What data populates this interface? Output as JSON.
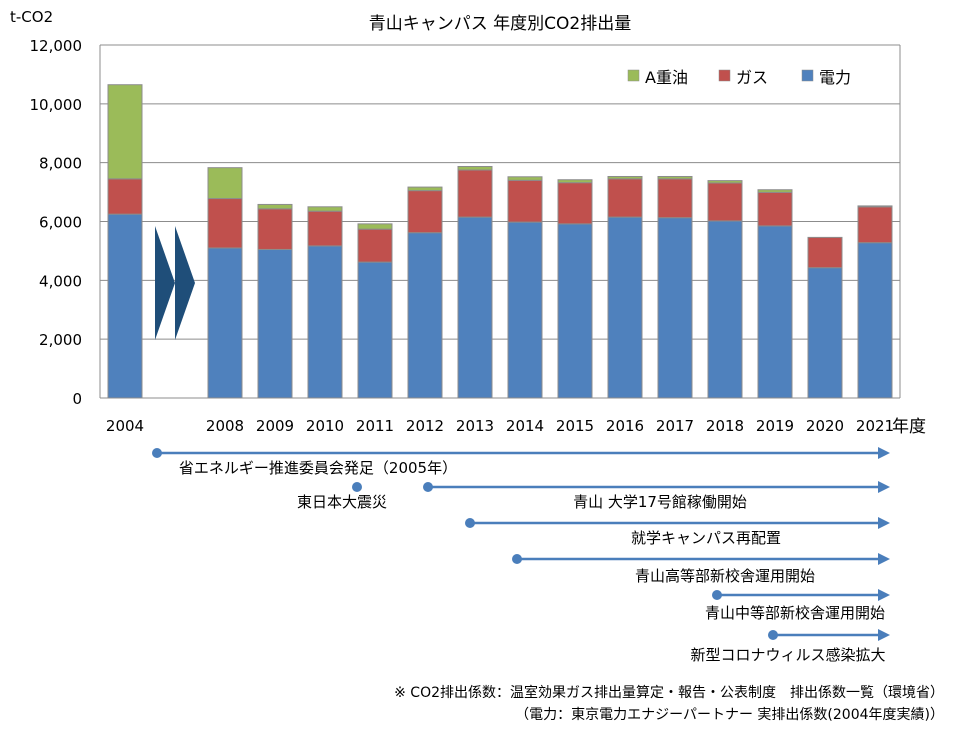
{
  "chart_data": {
    "type": "bar",
    "stacked": true,
    "title": "青山キャンパス 年度別CO2排出量",
    "ylabel": "t-CO2",
    "xlabel": "年度",
    "ylim": [
      0,
      12000
    ],
    "yticks": [
      "0",
      "2,000",
      "4,000",
      "6,000",
      "8,000",
      "10,000",
      "12,000"
    ],
    "grid": true,
    "legend_position": "top-right",
    "categories": [
      "2004",
      "2008",
      "2009",
      "2010",
      "2011",
      "2012",
      "2013",
      "2014",
      "2015",
      "2016",
      "2017",
      "2018",
      "2019",
      "2020",
      "2021"
    ],
    "series": [
      {
        "name": "電力",
        "color": "#4f81bd",
        "values": [
          6250,
          5100,
          5050,
          5170,
          4620,
          5620,
          6150,
          5980,
          5920,
          6150,
          6130,
          6020,
          5850,
          4430,
          5280
        ]
      },
      {
        "name": "ガス",
        "color": "#c0504d",
        "values": [
          1200,
          1680,
          1380,
          1180,
          1120,
          1430,
          1600,
          1420,
          1400,
          1300,
          1320,
          1290,
          1140,
          1030,
          1220
        ]
      },
      {
        "name": "A重油",
        "color": "#9bbb59",
        "values": [
          3200,
          1050,
          150,
          150,
          180,
          120,
          120,
          120,
          100,
          80,
          80,
          80,
          90,
          0,
          30
        ]
      }
    ],
    "legend_order": [
      "A重油",
      "ガス",
      "電力"
    ]
  },
  "timeline": [
    {
      "label": "省エネルギー推進委員会発足（2005年）",
      "color": "#4a7ebb"
    },
    {
      "label": "東日本大震災",
      "color": "#4a7ebb"
    },
    {
      "label": "青山 大学17号館稼働開始",
      "color": "#4a7ebb"
    },
    {
      "label": "就学キャンパス再配置",
      "color": "#4a7ebb"
    },
    {
      "label": "青山高等部新校舎運用開始",
      "color": "#4a7ebb"
    },
    {
      "label": "青山中等部新校舎運用開始",
      "color": "#4a7ebb"
    },
    {
      "label": "新型コロナウィルス感染拡大",
      "color": "#4a7ebb"
    }
  ],
  "footnote": {
    "line1": "※ CO2排出係数：温室効果ガス排出量算定・報告・公表制度　排出係数一覧（環境省）",
    "line2": "（電力：東京電力エナジーパートナー 実排出係数(2004年度実績)）"
  },
  "break_marker_color": "#1f4e79"
}
